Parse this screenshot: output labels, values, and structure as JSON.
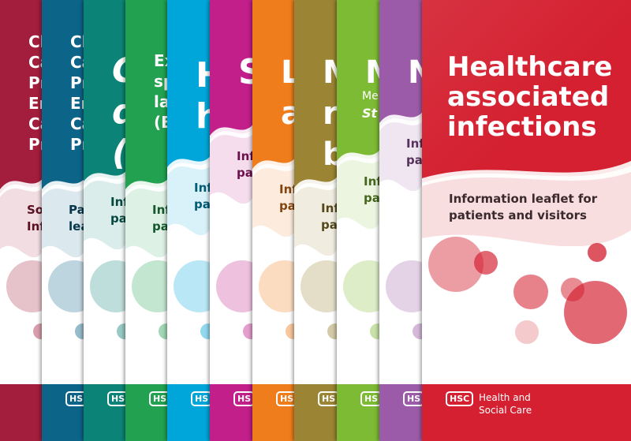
{
  "leaflets": [
    {
      "color": "#a31d3c",
      "title": "Cl\nCa\nPr\nEn\nCa\nPr",
      "tagline": "So\nInf",
      "logo_text": ""
    },
    {
      "color": "#0c6488",
      "title": "Cl\nCa\nPr\nEn\nCa\nPr",
      "tagline": "Pa\nlea",
      "logo_text": "HS"
    },
    {
      "color": "#0b8477",
      "title": "C\nd\n(",
      "tagline": "Inf\npa",
      "logo_text": "HS"
    },
    {
      "color": "#22a150",
      "title": "Ex\nsp\nla\n(E",
      "tagline": "Inf\npa",
      "logo_text": "HS"
    },
    {
      "color": "#00a6d9",
      "title": "H\nh",
      "tagline": "Inf\npa",
      "logo_text": "HS"
    },
    {
      "color": "#c21f8a",
      "title": "S",
      "tagline": "Inf\npa",
      "logo_text": "HS"
    },
    {
      "color": "#ef7d1b",
      "title": "L\na",
      "tagline": "Inf\npa",
      "logo_text": "HS"
    },
    {
      "color": "#9b8433",
      "title": "M\nr\nb",
      "tagline": "Inf\npa",
      "logo_text": "HS"
    },
    {
      "color": "#7cbb33",
      "title": "M",
      "subtitle": "Me",
      "subtitle2": "St",
      "tagline": "Inf\npa",
      "logo_text": "HS"
    },
    {
      "color": "#9c5ba8",
      "title": "N",
      "tagline": "Inf\npa",
      "logo_text": "HS"
    },
    {
      "color": "#d42030",
      "title": "Healthcare\nassociated\ninfections",
      "tagline": "Information leaflet for\npatients and visitors",
      "logo_text": "HSC",
      "org_name": "Health and\nSocial Care"
    }
  ]
}
